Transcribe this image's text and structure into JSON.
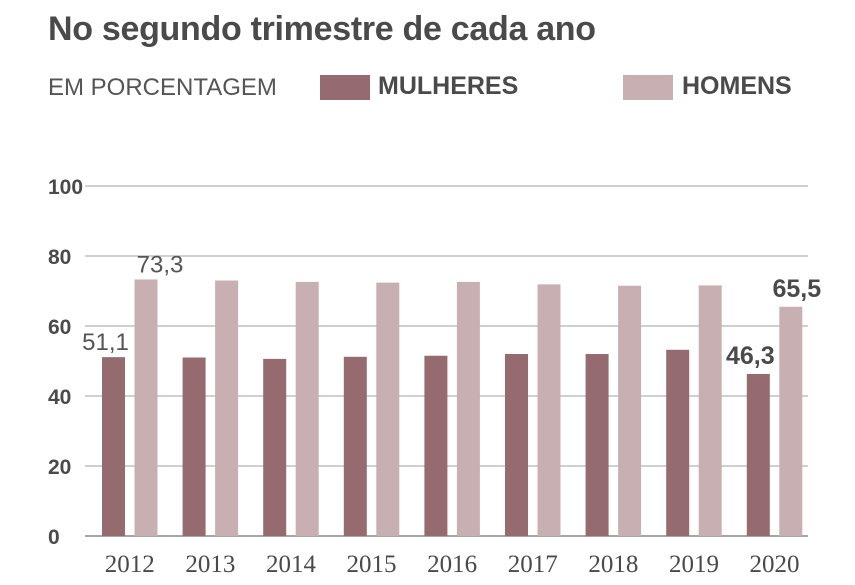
{
  "chart_data": {
    "type": "bar",
    "title": "No segundo trimestre de cada ano",
    "subtitle": "EM PORCENTAGEM",
    "categories": [
      "2012",
      "2013",
      "2014",
      "2015",
      "2016",
      "2017",
      "2018",
      "2019",
      "2020"
    ],
    "series": [
      {
        "name": "MULHERES",
        "color": "#956b70",
        "values": [
          51.1,
          51.0,
          50.6,
          51.2,
          51.5,
          52.0,
          52.0,
          53.2,
          46.3
        ]
      },
      {
        "name": "HOMENS",
        "color": "#c8b0b2",
        "values": [
          73.3,
          73.0,
          72.6,
          72.4,
          72.6,
          71.9,
          71.5,
          71.6,
          65.5
        ]
      }
    ],
    "yticks": [
      0,
      20,
      40,
      60,
      80,
      100
    ],
    "ylim": [
      0,
      100
    ],
    "grid": true,
    "data_labels": [
      {
        "text": "51,1",
        "series": 0,
        "index": 0,
        "style": "plain"
      },
      {
        "text": "73,3",
        "series": 1,
        "index": 0,
        "style": "plain"
      },
      {
        "text": "46,3",
        "series": 0,
        "index": 8,
        "style": "bold"
      },
      {
        "text": "65,5",
        "series": 1,
        "index": 8,
        "style": "bold"
      }
    ]
  }
}
